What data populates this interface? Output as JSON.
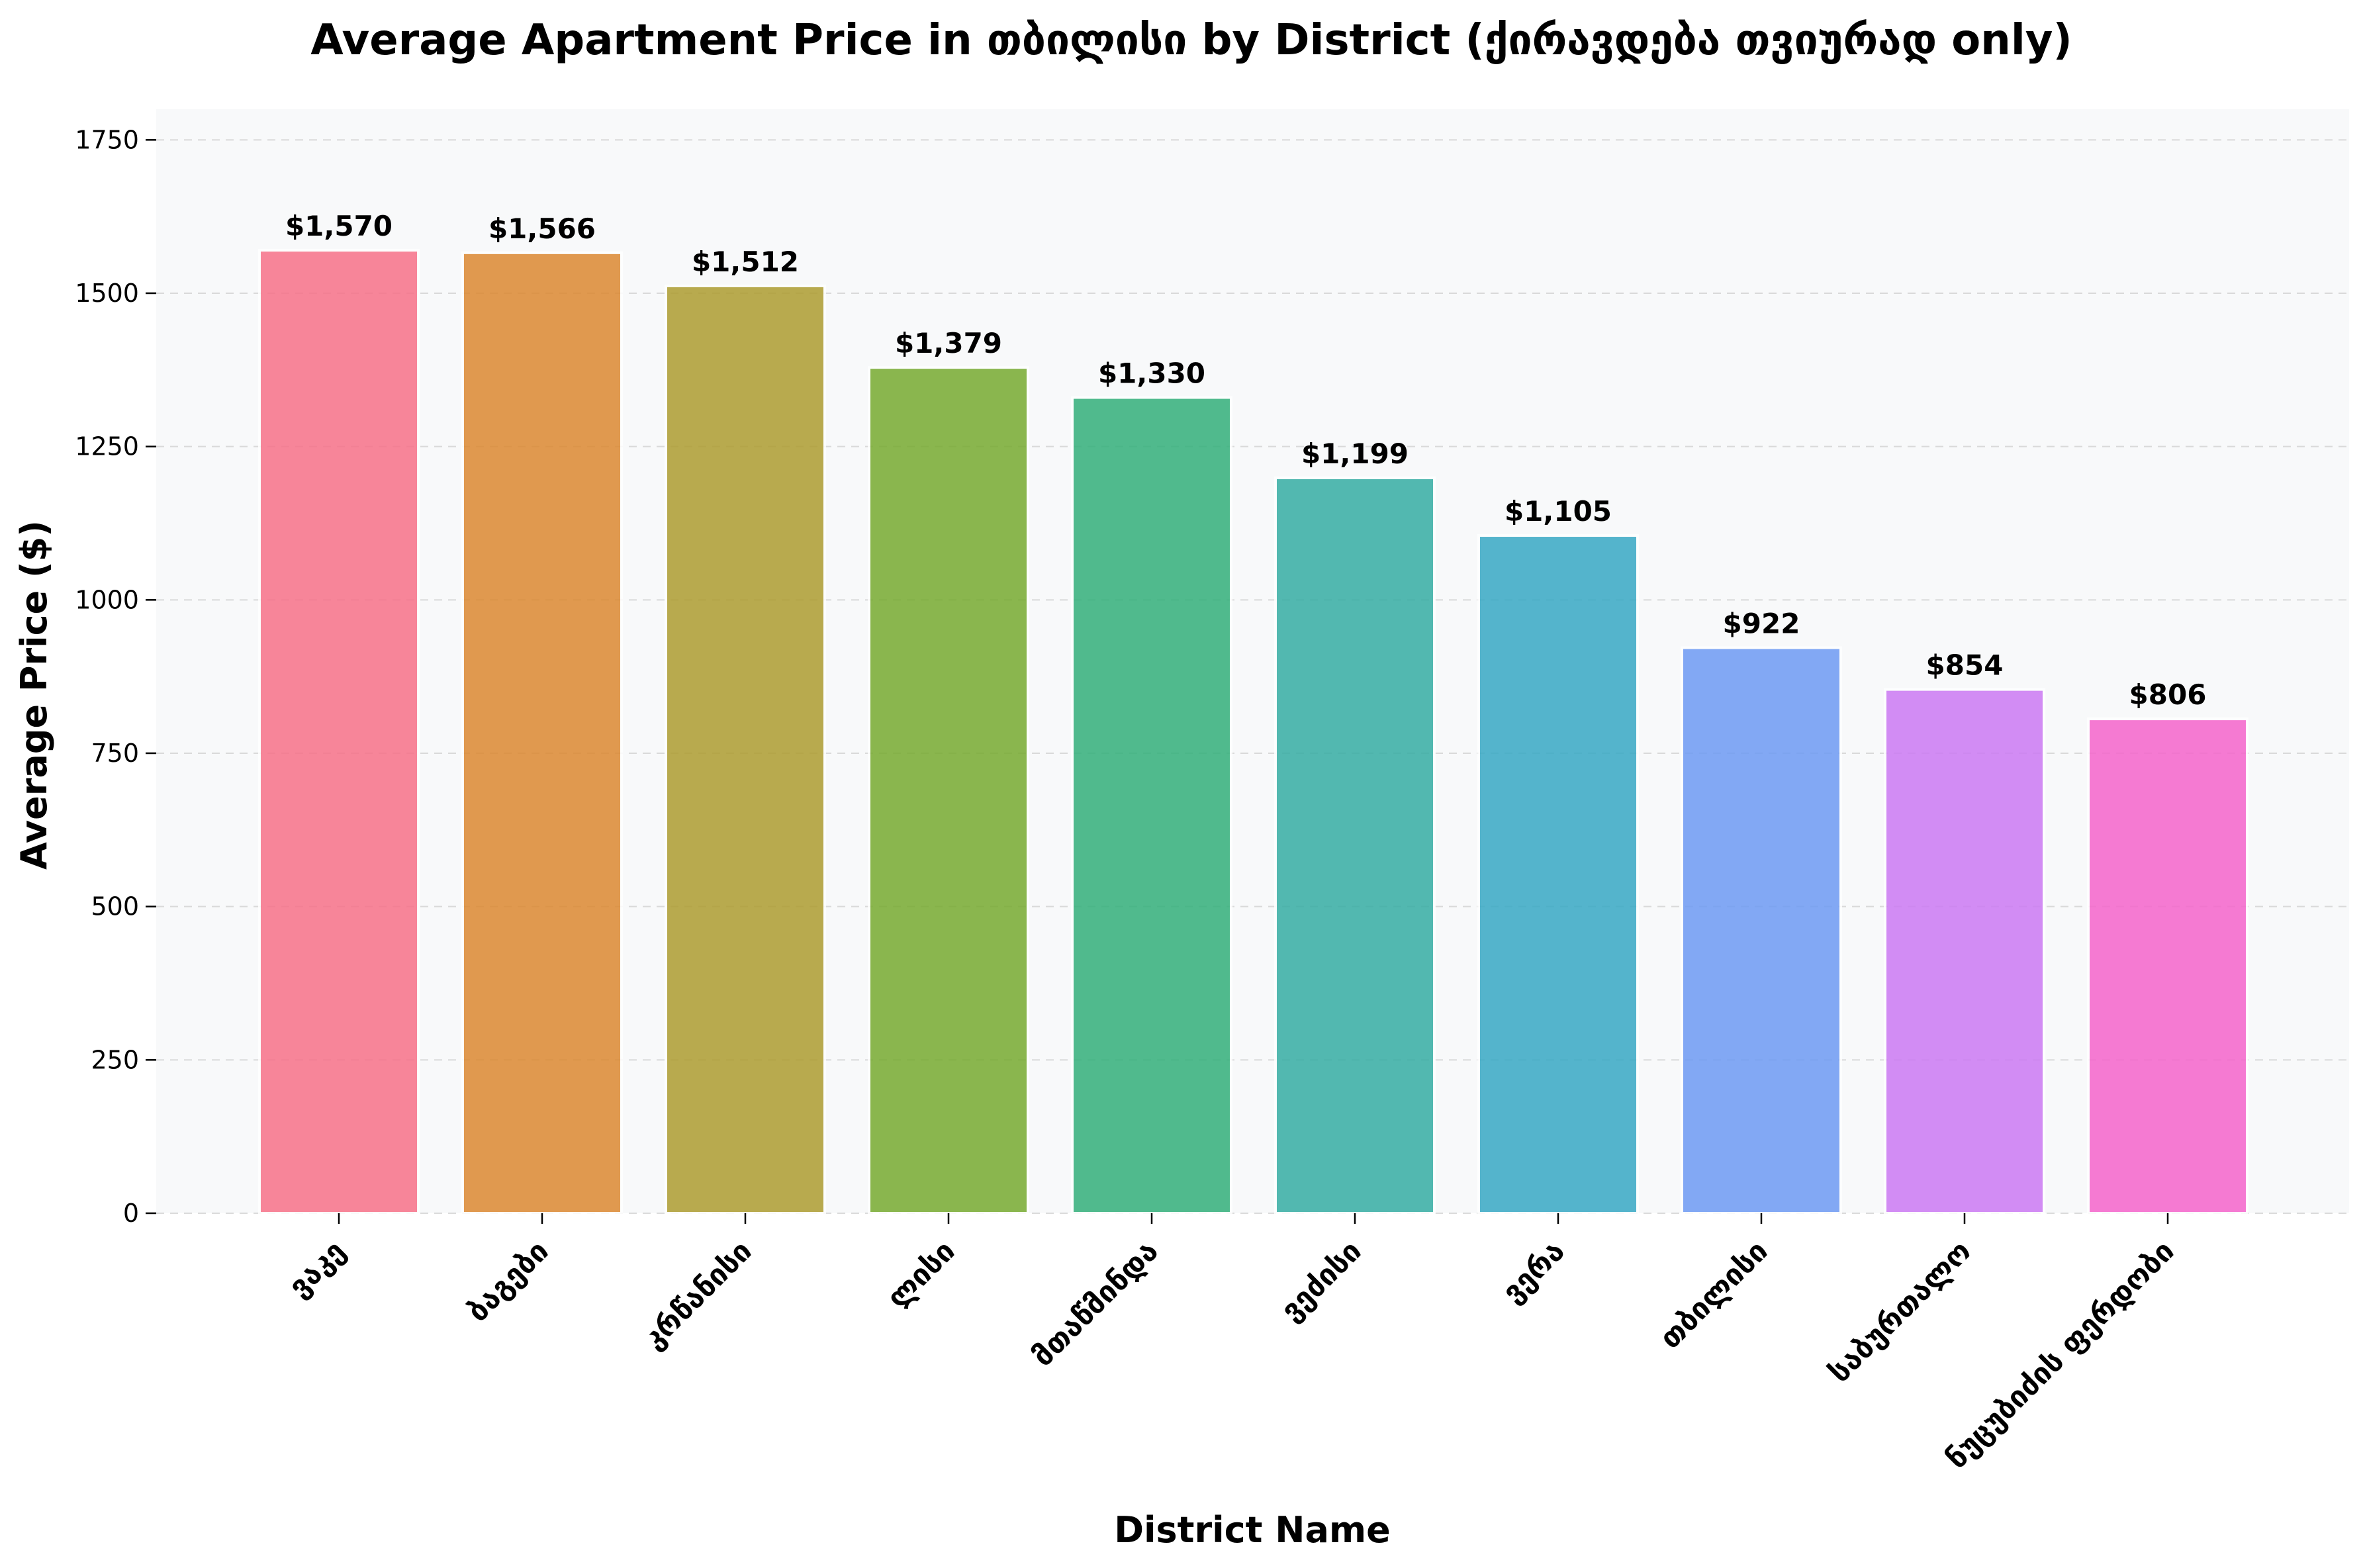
{
  "chart_data": {
    "type": "bar",
    "title": "Average Apartment Price in თბილისი by District (ქირავდება თვიურად only)",
    "xlabel": "District Name",
    "ylabel": "Average Price ($)",
    "ylim": [
      0,
      1800
    ],
    "yticks": [
      0,
      250,
      500,
      750,
      1000,
      1250,
      1500,
      1750
    ],
    "grid": "y",
    "categories": [
      "ვაკე",
      "ბაგები",
      "კრწანისი",
      "ლისი",
      "მთაწმინდა",
      "ვეძისი",
      "ვერა",
      "თბილისი",
      "საბურთალო",
      "ნუცუბიძის ფერდობი"
    ],
    "values": [
      1570,
      1566,
      1512,
      1379,
      1330,
      1199,
      1105,
      922,
      854,
      806
    ],
    "data_labels": [
      "$1,570",
      "$1,566",
      "$1,512",
      "$1,379",
      "$1,330",
      "$1,199",
      "$1,105",
      "$922",
      "$854",
      "$806"
    ],
    "colors": [
      "#f77189",
      "#dc8932",
      "#ae9d31",
      "#77ab31",
      "#33b07a",
      "#36ada4",
      "#38a9c5",
      "#6e9bf4",
      "#cc7af4",
      "#f565cc"
    ],
    "plot_background": "#f8f9fa"
  }
}
